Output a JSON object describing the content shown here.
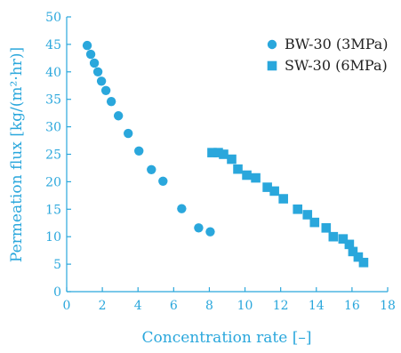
{
  "chart_data": {
    "type": "scatter",
    "xlabel": "Concentration rate [–]",
    "ylabel": "Permeation flux [kg/(m²·hr)]",
    "xlim": [
      0,
      18
    ],
    "ylim": [
      0,
      50
    ],
    "xticks": [
      0,
      2,
      4,
      6,
      8,
      10,
      12,
      14,
      16,
      18
    ],
    "yticks": [
      0,
      5,
      10,
      15,
      20,
      25,
      30,
      35,
      40,
      45,
      50
    ],
    "grid": false,
    "legend_position": "top-right",
    "series": [
      {
        "name": "BW-30 (3MPa)",
        "marker": "circle",
        "color": "#2aa7dc",
        "x": [
          1.15,
          1.35,
          1.55,
          1.75,
          1.95,
          2.2,
          2.5,
          2.9,
          3.45,
          4.05,
          4.75,
          5.4,
          6.45,
          7.4,
          8.05
        ],
        "y": [
          44.8,
          43.2,
          41.6,
          40.0,
          38.3,
          36.6,
          34.6,
          32.0,
          28.8,
          25.6,
          22.2,
          20.1,
          15.1,
          11.6,
          10.9
        ]
      },
      {
        "name": "SW-30 (6MPa)",
        "marker": "square",
        "color": "#2aa7dc",
        "x": [
          8.15,
          8.5,
          8.8,
          9.25,
          9.6,
          10.1,
          10.6,
          11.25,
          11.65,
          12.15,
          12.95,
          13.5,
          13.9,
          14.55,
          14.95,
          15.5,
          15.85,
          16.05,
          16.35,
          16.65
        ],
        "y": [
          25.3,
          25.3,
          25.0,
          24.1,
          22.3,
          21.2,
          20.7,
          19.0,
          18.3,
          16.9,
          15.0,
          14.0,
          12.6,
          11.6,
          10.0,
          9.6,
          8.6,
          7.3,
          6.3,
          5.3
        ]
      }
    ]
  }
}
